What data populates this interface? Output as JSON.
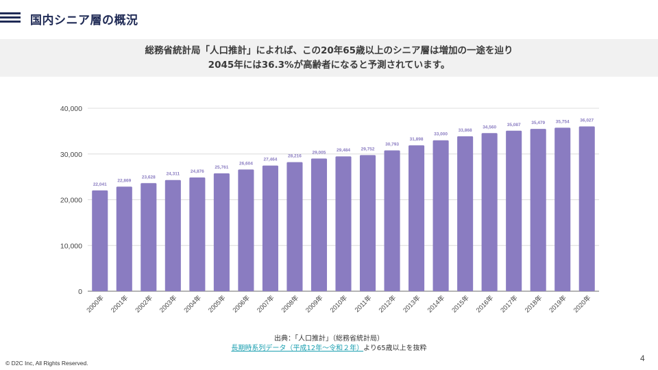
{
  "header": {
    "title": "国内シニア層の概況",
    "menu_icon": "hamburger-icon"
  },
  "summary": {
    "line1": "総務省統計局「人口推計」によれば、この20年65歳以上のシニア層は増加の一途を辿り",
    "line2": "2045年には36.3%が高齢者になると予測されています。"
  },
  "chart_data": {
    "type": "bar",
    "title": "",
    "xlabel": "",
    "ylabel": "",
    "categories": [
      "2000年",
      "2001年",
      "2002年",
      "2003年",
      "2004年",
      "2005年",
      "2006年",
      "2007年",
      "2008年",
      "2009年",
      "2010年",
      "2011年",
      "2012年",
      "2013年",
      "2014年",
      "2015年",
      "2016年",
      "2017年",
      "2018年",
      "2019年",
      "2020年"
    ],
    "values": [
      22041,
      22869,
      23628,
      24311,
      24876,
      25761,
      26604,
      27464,
      28216,
      29005,
      29484,
      29752,
      30793,
      31898,
      33000,
      33868,
      34560,
      35087,
      35479,
      35754,
      36027
    ],
    "value_labels": [
      "22,041",
      "22,869",
      "23,628",
      "24,311",
      "24,876",
      "25,761",
      "26,604",
      "27,464",
      "28,216",
      "29,005",
      "29,484",
      "29,752",
      "30,793",
      "31,898",
      "33,000",
      "33,868",
      "34,560",
      "35,087",
      "35,479",
      "35,754",
      "36,027"
    ],
    "ylim": [
      0,
      40000
    ],
    "yticks": [
      0,
      10000,
      20000,
      30000,
      40000
    ],
    "ytick_labels": [
      "0",
      "10,000",
      "20,000",
      "30,000",
      "40,000"
    ],
    "grid": true,
    "legend": "none",
    "bar_color": "#8a7cc1",
    "label_color": "#8a7cc1"
  },
  "source": {
    "line1": "出典：「人口推計」（総務省統計局）",
    "link_text": "長期時系列データ（平成12年～令和２年）",
    "line2_suffix": "より65歳以上を抜粋"
  },
  "footer": {
    "copyright": "© D2C Inc, All Rights Reserved.",
    "page_number": "4"
  }
}
